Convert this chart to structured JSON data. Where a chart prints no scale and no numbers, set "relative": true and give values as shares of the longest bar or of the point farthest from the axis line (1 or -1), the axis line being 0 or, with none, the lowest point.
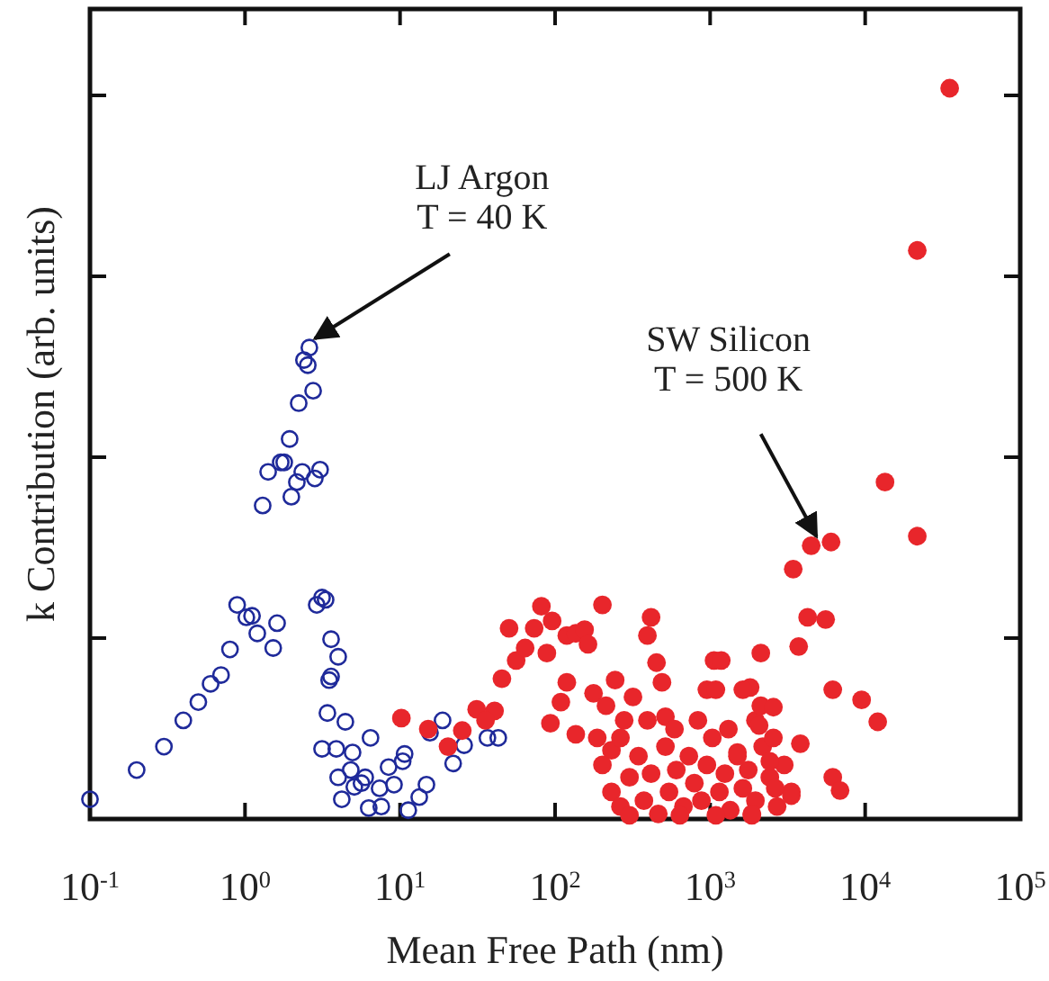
{
  "chart_data": {
    "type": "scatter",
    "xlabel": "Mean Free Path (nm)",
    "ylabel": "k Contribution (arb. units)",
    "log": "x",
    "relative": true,
    "marker": "circle",
    "grid": false,
    "xlim": [
      0.1,
      100000
    ],
    "xticks": [
      {
        "value": 0.1,
        "label": "10$^{-1}$"
      },
      {
        "value": 1,
        "label": "10$^{0}$"
      },
      {
        "value": 10,
        "label": "10$^{1}$"
      },
      {
        "value": 100,
        "label": "10$^{2}$"
      },
      {
        "value": 1000,
        "label": "10$^{3}$"
      },
      {
        "value": 10000,
        "label": "10$^{4}$"
      },
      {
        "value": 100000,
        "label": "10$^{5}$"
      }
    ],
    "annotations": [
      {
        "text": "LJ Argon\nT = 40 K",
        "x": 2.6,
        "y": 0.645
      },
      {
        "text": "SW Silicon\nT = 500 K",
        "x": 4487,
        "y": 0.374
      }
    ],
    "series": [
      {
        "color": "#1f2a9a",
        "x": [
          0.1,
          0.2,
          0.3,
          0.4,
          0.5,
          0.6,
          0.7,
          0.8,
          0.89,
          1.02,
          1.11,
          1.2,
          1.52,
          1.61,
          1.3,
          1.41,
          1.7,
          1.79,
          1.94,
          1.99,
          2.16,
          2.34,
          2.82,
          3.05,
          2.22,
          2.75,
          2.4,
          2.54,
          2.6,
          2.9,
          3.14,
          3.31,
          3.59,
          3.99,
          3.59,
          3.49,
          3.4,
          4.44,
          3.14,
          3.88,
          4.94,
          6.45,
          3.99,
          4.81,
          5.07,
          5.64,
          5.96,
          4.21,
          6.28,
          7.57,
          7.38,
          9.14,
          8.43,
          10.4,
          10.7,
          11.3,
          13.3,
          14.8,
          18.8,
          15.6,
          22,
          25.9,
          36.6,
          43
        ],
        "values": [
          0.027,
          0.067,
          0.099,
          0.135,
          0.16,
          0.185,
          0.197,
          0.232,
          0.293,
          0.276,
          0.278,
          0.254,
          0.234,
          0.268,
          0.429,
          0.475,
          0.488,
          0.488,
          0.52,
          0.441,
          0.461,
          0.475,
          0.466,
          0.478,
          0.569,
          0.586,
          0.628,
          0.621,
          0.645,
          0.293,
          0.303,
          0.3,
          0.246,
          0.222,
          0.195,
          0.19,
          0.145,
          0.133,
          0.096,
          0.096,
          0.091,
          0.111,
          0.057,
          0.067,
          0.044,
          0.049,
          0.057,
          0.027,
          0.015,
          0.017,
          0.042,
          0.047,
          0.071,
          0.079,
          0.089,
          0.012,
          0.03,
          0.047,
          0.135,
          0.118,
          0.076,
          0.101,
          0.111,
          0.111
        ]
      },
      {
        "color": "#e8262b",
        "x": [
          10.2,
          15.2,
          20.4,
          25.2,
          31.2,
          40.7,
          35.6,
          45.4,
          50.5,
          56.1,
          64.1,
          73.3,
          81.6,
          88.5,
          95.7,
          119,
          136,
          155,
          163,
          202,
          416,
          394,
          451,
          489,
          244,
          318,
          119,
          109,
          93.3,
          177,
          213,
          279,
          515,
          953,
          1060,
          136,
          187,
          231,
          202,
          231,
          264,
          302,
          345,
          374,
          416,
          463,
          515,
          543,
          605,
          673,
          729,
          791,
          879,
          953,
          1033,
          1148,
          1245,
          1349,
          1500,
          1626,
          1762,
          1959,
          2183,
          2427,
          2704,
          3006,
          3342,
          264,
          394,
          589,
          834,
          1312,
          1959,
          302,
          638,
          1089,
          1858,
          2559,
          35080,
          21680,
          13430,
          21680,
          4487,
          6026,
          3436,
          4256,
          5559,
          3724,
          2123,
          1180,
          6180,
          9484,
          12050,
          3819,
          2427,
          6180,
          6887,
          2630,
          3342,
          1811,
          1089,
          1626,
          2123,
          2559,
          2070,
          1500,
          1858
        ],
        "values": [
          0.138,
          0.123,
          0.099,
          0.121,
          0.15,
          0.148,
          0.135,
          0.192,
          0.261,
          0.217,
          0.234,
          0.261,
          0.291,
          0.227,
          0.271,
          0.251,
          0.254,
          0.259,
          0.239,
          0.293,
          0.276,
          0.251,
          0.214,
          0.187,
          0.19,
          0.167,
          0.187,
          0.16,
          0.131,
          0.172,
          0.155,
          0.135,
          0.14,
          0.177,
          0.217,
          0.116,
          0.111,
          0.094,
          0.074,
          0.037,
          0.017,
          0.057,
          0.086,
          0.025,
          0.062,
          0.007,
          0.099,
          0.037,
          0.067,
          0.017,
          0.086,
          0.049,
          0.025,
          0.074,
          0.111,
          0.037,
          0.062,
          0.012,
          0.086,
          0.042,
          0.067,
          0.025,
          0.099,
          0.057,
          0.017,
          0.074,
          0.037,
          0.111,
          0.135,
          0.123,
          0.135,
          0.123,
          0.135,
          0.005,
          0.005,
          0.005,
          0.005,
          0.111,
          1,
          0.778,
          0.461,
          0.387,
          0.374,
          0.379,
          0.342,
          0.276,
          0.273,
          0.236,
          0.227,
          0.217,
          0.177,
          0.163,
          0.133,
          0.103,
          0.079,
          0.057,
          0.039,
          0.042,
          0.032,
          0.18,
          0.177,
          0.177,
          0.155,
          0.153,
          0.128,
          0.091,
          0.007
        ]
      }
    ]
  }
}
